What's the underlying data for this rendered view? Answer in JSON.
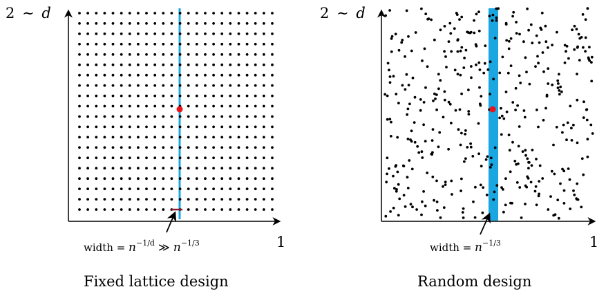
{
  "panels": [
    {
      "id": "lattice",
      "y_axis_label_num": "2",
      "y_axis_label_sym": "∼",
      "y_axis_label_var": "d",
      "x_axis_end_label": "1",
      "width_label_text": "width = ",
      "width_label_math": "n",
      "width_label_exp": "−1/d",
      "width_label_rel": " ≫ ",
      "width_label_math2": "n",
      "width_label_exp2": "−1/3",
      "caption": "Fixed lattice design"
    },
    {
      "id": "random",
      "y_axis_label_num": "2",
      "y_axis_label_sym": "∼",
      "y_axis_label_var": "d",
      "x_axis_end_label": "1",
      "width_label_text": "width = ",
      "width_label_math": "n",
      "width_label_exp": "−1/3",
      "caption": "Random design"
    }
  ],
  "colors": {
    "point": "#000000",
    "target": "#e8141b",
    "band": "#1aa6e0",
    "tick": "#8b1a2b"
  },
  "lattice": {
    "cols": 24,
    "rows": 20
  },
  "random": {
    "count": 420,
    "seed": 7
  }
}
